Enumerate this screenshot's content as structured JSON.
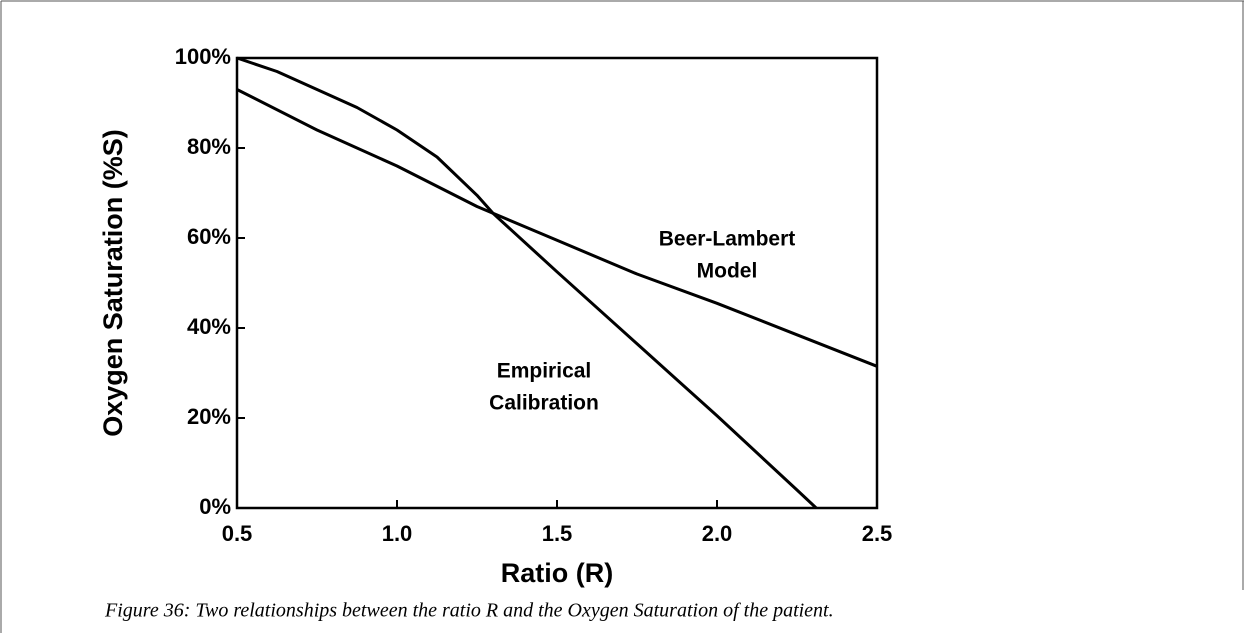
{
  "chart_data": {
    "type": "line",
    "x_label": "Ratio (R)",
    "y_label": "Oxygen Saturation (%S)",
    "caption": "Figure 36: Two relationships between the ratio R and the Oxygen Saturation of the patient.",
    "xlim": [
      0.5,
      2.5
    ],
    "ylim": [
      0,
      100
    ],
    "xticks": [
      0.5,
      {
        "value": 1.0,
        "label": "1.0"
      },
      1.5,
      {
        "value": 2.0,
        "label": "2.0"
      },
      2.5
    ],
    "yticks": [
      {
        "value": 0,
        "label": "0%"
      },
      {
        "value": 20,
        "label": "20%"
      },
      {
        "value": 40,
        "label": "40%"
      },
      {
        "value": 60,
        "label": "60%"
      },
      {
        "value": 80,
        "label": "80%"
      },
      {
        "value": 100,
        "label": "100%"
      }
    ],
    "series": [
      {
        "color": "#000000",
        "x": [
          0.5,
          0.75,
          1.0,
          1.25,
          1.5,
          1.75,
          2.0,
          2.25,
          2.5
        ],
        "values": [
          93,
          84,
          76,
          67,
          59.5,
          52,
          45.5,
          38.5,
          31.5
        ]
      },
      {
        "color": "#000000",
        "x": [
          0.5,
          0.625,
          0.75,
          0.875,
          1.0,
          1.125,
          1.25,
          1.3,
          1.5,
          1.75,
          2.0,
          2.25,
          2.31
        ],
        "values": [
          100,
          97,
          93,
          89,
          84,
          78,
          69.5,
          65.5,
          52.5,
          36.5,
          20.5,
          4,
          0
        ]
      }
    ],
    "annotations": [
      {
        "lines": [
          "Beer-Lambert",
          "Model"
        ]
      },
      {
        "lines": [
          "Empirical",
          "Calibration"
        ]
      }
    ]
  }
}
